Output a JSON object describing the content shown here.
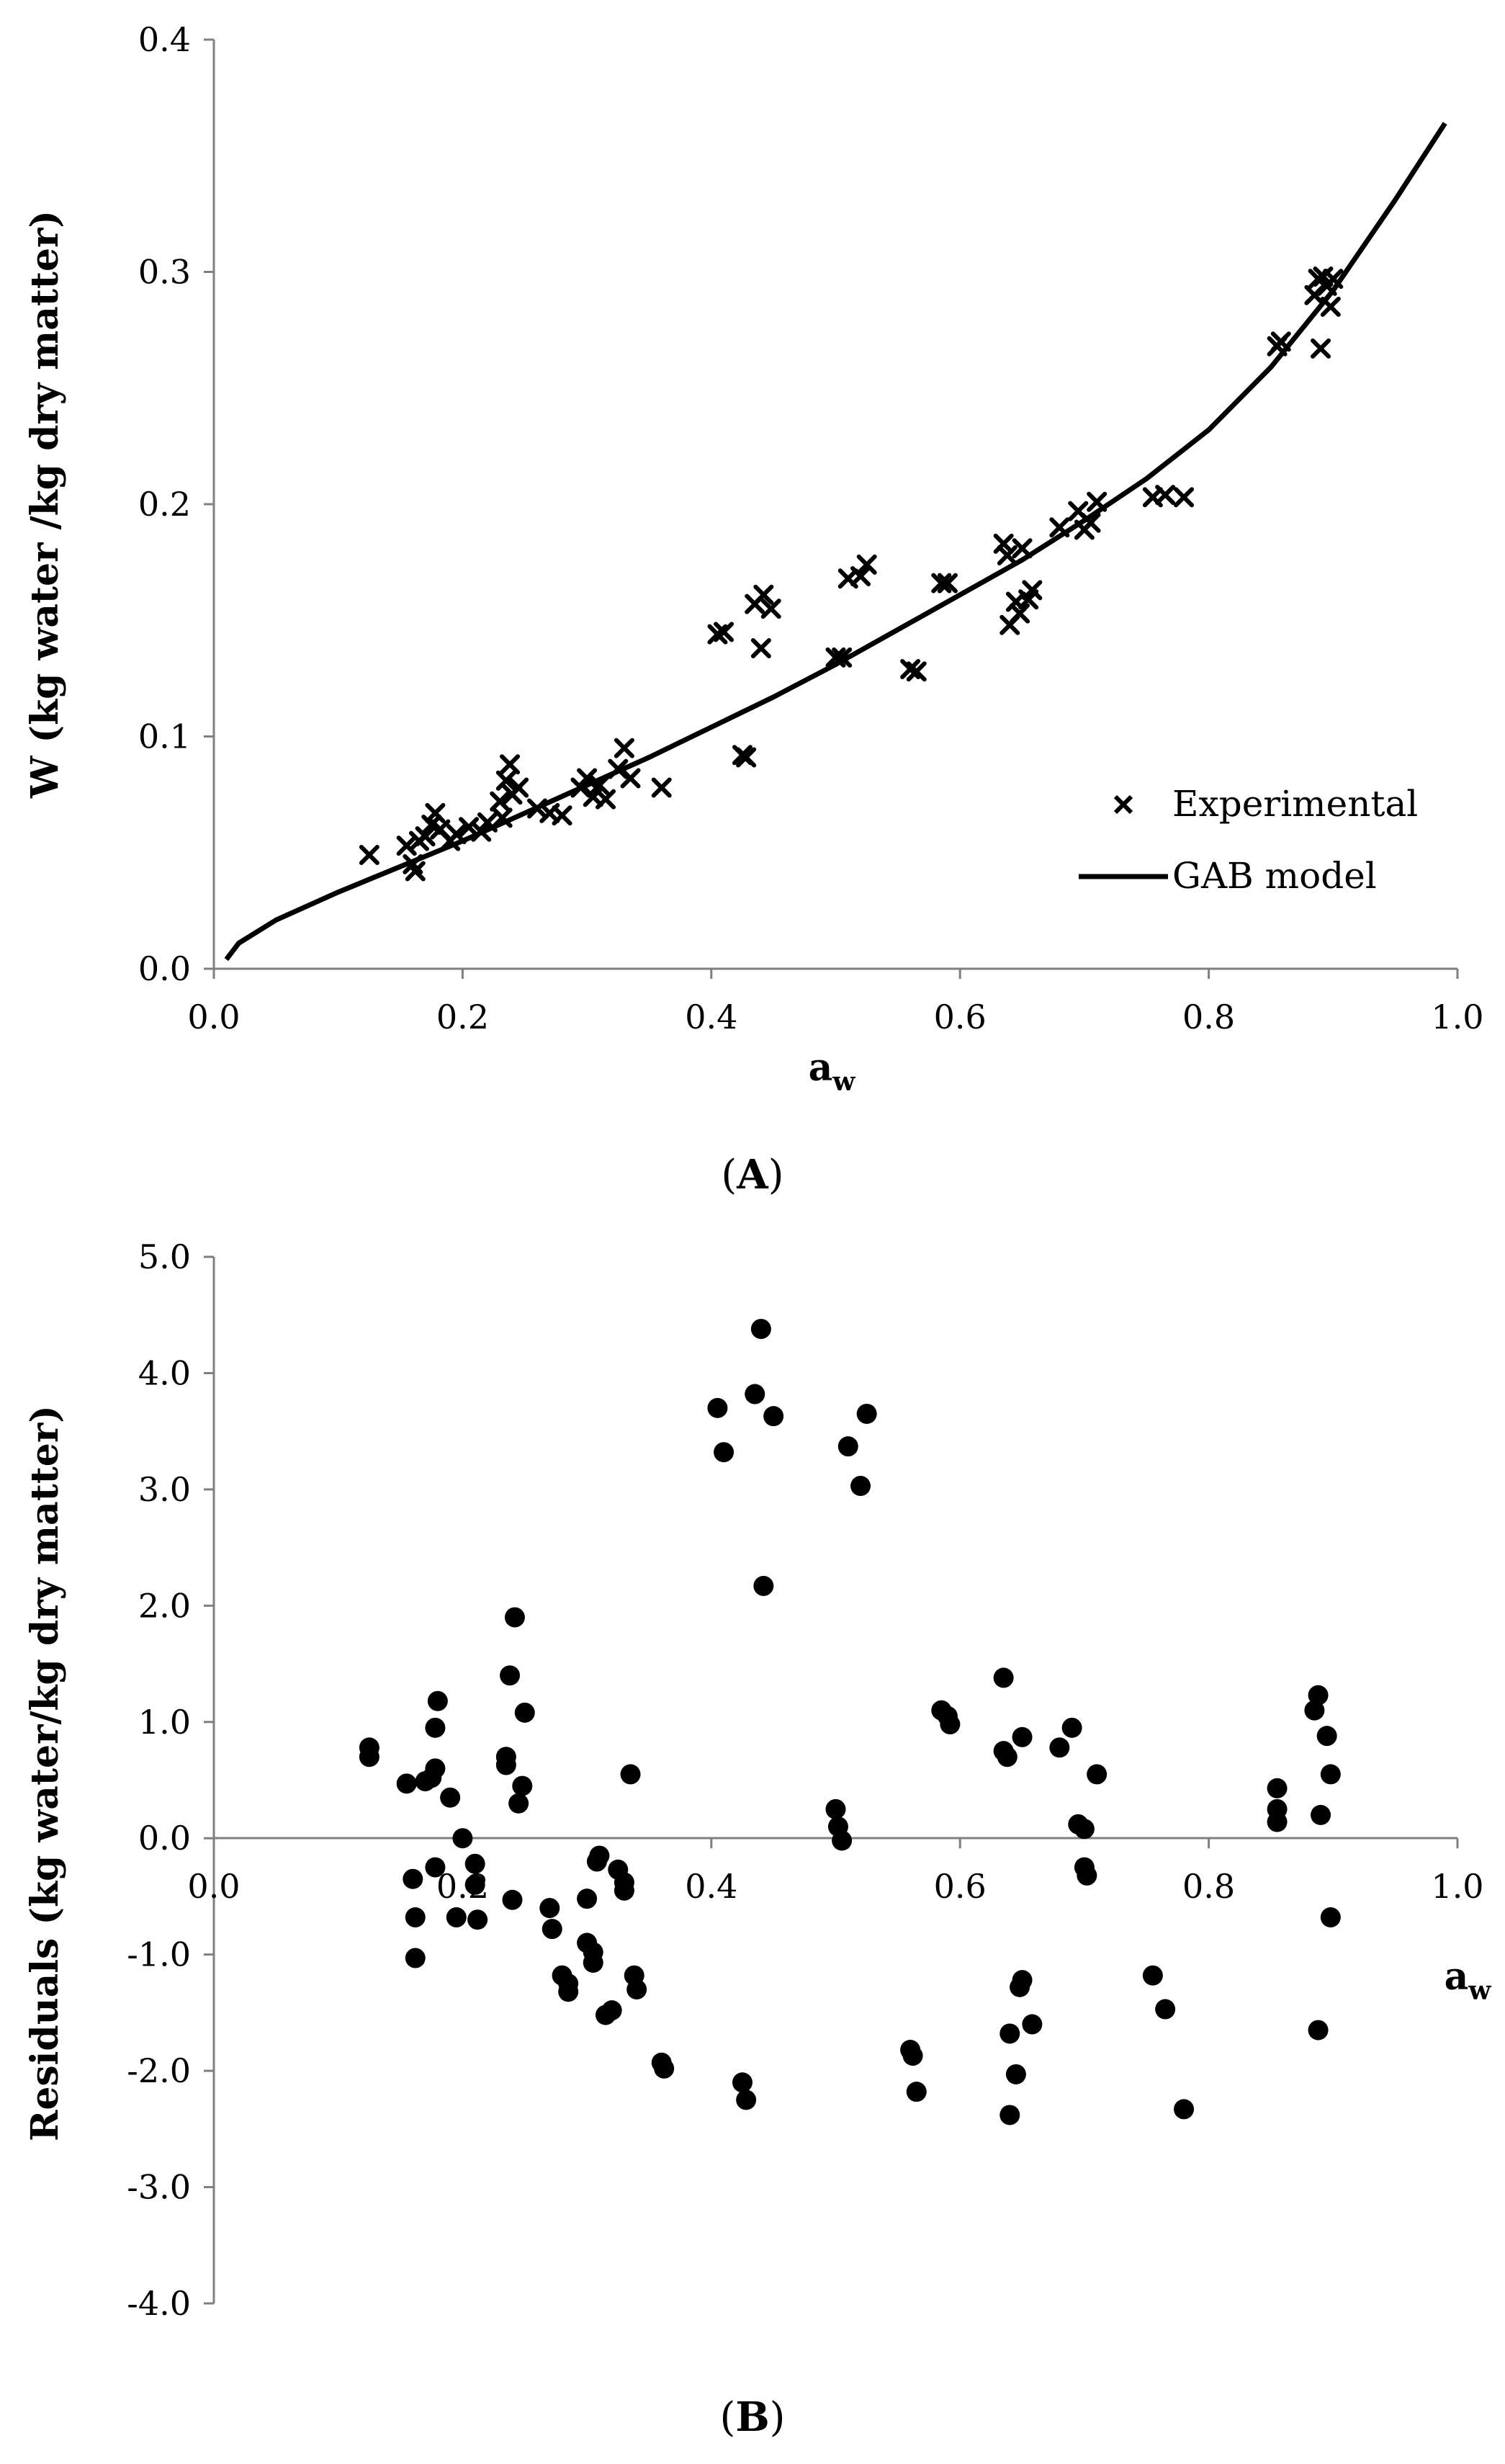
{
  "chart_data": [
    {
      "type": "scatter",
      "panel_label": "(A)",
      "panel_label_parts": [
        "(",
        "A",
        ")"
      ],
      "xlabel": "a",
      "xlabel_sub": "w",
      "ylabel": "W  (kg water /kg dry matter)",
      "xlim": [
        0.0,
        1.0
      ],
      "ylim": [
        0.0,
        0.4
      ],
      "xticks": [
        "0.0",
        "0.2",
        "0.4",
        "0.6",
        "0.8",
        "1.0"
      ],
      "yticks": [
        "0.0",
        "0.1",
        "0.2",
        "0.3",
        "0.4"
      ],
      "legend": {
        "position": "bottom-right",
        "entries": [
          {
            "label": "Experimental",
            "marker": "x"
          },
          {
            "label": "GAB model",
            "marker": "line"
          }
        ]
      },
      "series": [
        {
          "name": "Experimental",
          "kind": "scatter",
          "marker": "x",
          "points": [
            [
              0.125,
              0.049
            ],
            [
              0.155,
              0.053
            ],
            [
              0.16,
              0.045
            ],
            [
              0.162,
              0.042
            ],
            [
              0.165,
              0.055
            ],
            [
              0.17,
              0.057
            ],
            [
              0.175,
              0.062
            ],
            [
              0.178,
              0.067
            ],
            [
              0.182,
              0.06
            ],
            [
              0.19,
              0.055
            ],
            [
              0.195,
              0.058
            ],
            [
              0.205,
              0.061
            ],
            [
              0.215,
              0.059
            ],
            [
              0.22,
              0.063
            ],
            [
              0.23,
              0.072
            ],
            [
              0.232,
              0.065
            ],
            [
              0.235,
              0.081
            ],
            [
              0.238,
              0.088
            ],
            [
              0.24,
              0.075
            ],
            [
              0.245,
              0.078
            ],
            [
              0.26,
              0.069
            ],
            [
              0.27,
              0.067
            ],
            [
              0.28,
              0.066
            ],
            [
              0.295,
              0.078
            ],
            [
              0.3,
              0.082
            ],
            [
              0.305,
              0.074
            ],
            [
              0.31,
              0.079
            ],
            [
              0.315,
              0.073
            ],
            [
              0.325,
              0.086
            ],
            [
              0.33,
              0.095
            ],
            [
              0.335,
              0.082
            ],
            [
              0.36,
              0.078
            ],
            [
              0.405,
              0.144
            ],
            [
              0.41,
              0.145
            ],
            [
              0.425,
              0.092
            ],
            [
              0.428,
              0.091
            ],
            [
              0.435,
              0.157
            ],
            [
              0.44,
              0.138
            ],
            [
              0.442,
              0.161
            ],
            [
              0.448,
              0.155
            ],
            [
              0.5,
              0.134
            ],
            [
              0.505,
              0.134
            ],
            [
              0.51,
              0.168
            ],
            [
              0.52,
              0.169
            ],
            [
              0.525,
              0.174
            ],
            [
              0.56,
              0.129
            ],
            [
              0.565,
              0.128
            ],
            [
              0.585,
              0.166
            ],
            [
              0.59,
              0.166
            ],
            [
              0.635,
              0.183
            ],
            [
              0.638,
              0.178
            ],
            [
              0.64,
              0.148
            ],
            [
              0.645,
              0.158
            ],
            [
              0.648,
              0.153
            ],
            [
              0.65,
              0.181
            ],
            [
              0.655,
              0.159
            ],
            [
              0.658,
              0.163
            ],
            [
              0.68,
              0.19
            ],
            [
              0.695,
              0.197
            ],
            [
              0.7,
              0.189
            ],
            [
              0.705,
              0.192
            ],
            [
              0.71,
              0.201
            ],
            [
              0.755,
              0.203
            ],
            [
              0.765,
              0.204
            ],
            [
              0.78,
              0.203
            ],
            [
              0.855,
              0.268
            ],
            [
              0.858,
              0.27
            ],
            [
              0.885,
              0.29
            ],
            [
              0.888,
              0.297
            ],
            [
              0.89,
              0.267
            ],
            [
              0.892,
              0.298
            ],
            [
              0.895,
              0.294
            ],
            [
              0.898,
              0.285
            ],
            [
              0.9,
              0.297
            ]
          ]
        },
        {
          "name": "GAB model",
          "kind": "line",
          "x": [
            0.01,
            0.02,
            0.05,
            0.1,
            0.15,
            0.2,
            0.25,
            0.3,
            0.35,
            0.4,
            0.45,
            0.5,
            0.55,
            0.6,
            0.65,
            0.7,
            0.75,
            0.8,
            0.85,
            0.9,
            0.95,
            0.99
          ],
          "y": [
            0.004,
            0.011,
            0.021,
            0.033,
            0.044,
            0.055,
            0.067,
            0.079,
            0.091,
            0.104,
            0.117,
            0.131,
            0.146,
            0.161,
            0.176,
            0.193,
            0.211,
            0.232,
            0.259,
            0.292,
            0.331,
            0.364
          ]
        }
      ]
    },
    {
      "type": "scatter",
      "panel_label": "(B)",
      "panel_label_parts": [
        "(",
        "B",
        ")"
      ],
      "xlabel": "a",
      "xlabel_sub": "w",
      "ylabel": "Residuals  (kg water/kg dry matter)",
      "xlim": [
        0.0,
        1.0
      ],
      "ylim": [
        -4.0,
        5.0
      ],
      "xticks": [
        "0.0",
        "0.2",
        "0.4",
        "0.6",
        "0.8",
        "1.0"
      ],
      "yticks": [
        "-4.0",
        "-3.0",
        "-2.0",
        "-1.0",
        "0.0",
        "1.0",
        "2.0",
        "3.0",
        "4.0",
        "5.0"
      ],
      "series": [
        {
          "name": "Residuals",
          "kind": "scatter",
          "marker": "circle",
          "points": [
            [
              0.125,
              0.78
            ],
            [
              0.125,
              0.7
            ],
            [
              0.155,
              0.47
            ],
            [
              0.16,
              -0.35
            ],
            [
              0.162,
              -0.68
            ],
            [
              0.162,
              -1.03
            ],
            [
              0.17,
              0.49
            ],
            [
              0.175,
              0.52
            ],
            [
              0.178,
              0.95
            ],
            [
              0.178,
              0.6
            ],
            [
              0.18,
              1.18
            ],
            [
              0.178,
              -0.25
            ],
            [
              0.19,
              0.35
            ],
            [
              0.195,
              -0.68
            ],
            [
              0.2,
              0.0
            ],
            [
              0.21,
              -0.4
            ],
            [
              0.21,
              -0.22
            ],
            [
              0.212,
              -0.7
            ],
            [
              0.235,
              0.63
            ],
            [
              0.235,
              0.7
            ],
            [
              0.238,
              1.4
            ],
            [
              0.24,
              -0.53
            ],
            [
              0.242,
              1.9
            ],
            [
              0.245,
              0.3
            ],
            [
              0.248,
              0.45
            ],
            [
              0.25,
              1.08
            ],
            [
              0.27,
              -0.6
            ],
            [
              0.272,
              -0.78
            ],
            [
              0.28,
              -1.18
            ],
            [
              0.285,
              -1.25
            ],
            [
              0.285,
              -1.32
            ],
            [
              0.3,
              -0.52
            ],
            [
              0.3,
              -0.9
            ],
            [
              0.305,
              -0.98
            ],
            [
              0.305,
              -1.07
            ],
            [
              0.308,
              -0.2
            ],
            [
              0.31,
              -0.15
            ],
            [
              0.315,
              -1.52
            ],
            [
              0.32,
              -1.48
            ],
            [
              0.325,
              -0.27
            ],
            [
              0.33,
              -0.45
            ],
            [
              0.33,
              -0.38
            ],
            [
              0.335,
              0.55
            ],
            [
              0.338,
              -1.18
            ],
            [
              0.34,
              -1.3
            ],
            [
              0.36,
              -1.93
            ],
            [
              0.362,
              -1.98
            ],
            [
              0.405,
              3.7
            ],
            [
              0.41,
              3.32
            ],
            [
              0.425,
              -2.1
            ],
            [
              0.428,
              -2.25
            ],
            [
              0.435,
              3.82
            ],
            [
              0.44,
              4.38
            ],
            [
              0.442,
              2.17
            ],
            [
              0.45,
              3.63
            ],
            [
              0.5,
              0.25
            ],
            [
              0.502,
              0.1
            ],
            [
              0.505,
              -0.02
            ],
            [
              0.51,
              3.37
            ],
            [
              0.52,
              3.03
            ],
            [
              0.525,
              3.65
            ],
            [
              0.56,
              -1.82
            ],
            [
              0.562,
              -1.87
            ],
            [
              0.565,
              -2.18
            ],
            [
              0.585,
              1.1
            ],
            [
              0.59,
              1.05
            ],
            [
              0.592,
              0.98
            ],
            [
              0.635,
              1.38
            ],
            [
              0.635,
              0.75
            ],
            [
              0.638,
              0.7
            ],
            [
              0.64,
              -1.68
            ],
            [
              0.64,
              -2.38
            ],
            [
              0.645,
              -2.03
            ],
            [
              0.648,
              -1.28
            ],
            [
              0.65,
              -1.22
            ],
            [
              0.65,
              0.87
            ],
            [
              0.658,
              -1.6
            ],
            [
              0.68,
              0.78
            ],
            [
              0.69,
              0.95
            ],
            [
              0.695,
              0.12
            ],
            [
              0.7,
              0.08
            ],
            [
              0.7,
              -0.25
            ],
            [
              0.702,
              -0.32
            ],
            [
              0.71,
              0.55
            ],
            [
              0.755,
              -1.18
            ],
            [
              0.765,
              -1.47
            ],
            [
              0.78,
              -2.33
            ],
            [
              0.855,
              0.43
            ],
            [
              0.855,
              0.25
            ],
            [
              0.855,
              0.14
            ],
            [
              0.885,
              1.1
            ],
            [
              0.888,
              1.23
            ],
            [
              0.89,
              0.2
            ],
            [
              0.888,
              -1.65
            ],
            [
              0.895,
              0.88
            ],
            [
              0.898,
              0.55
            ],
            [
              0.898,
              -0.68
            ]
          ]
        }
      ]
    }
  ]
}
